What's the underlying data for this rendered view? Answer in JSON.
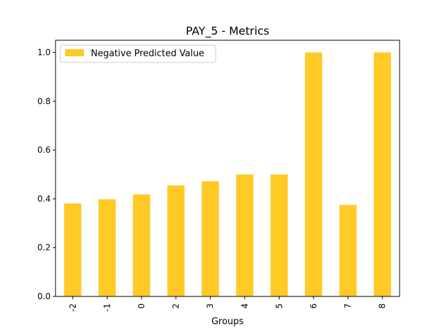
{
  "chart_data": {
    "type": "bar",
    "title": "PAY_5 - Metrics",
    "xlabel": "Groups",
    "ylabel": "",
    "categories": [
      "-2",
      "-1",
      "0",
      "2",
      "3",
      "4",
      "5",
      "6",
      "7",
      "8"
    ],
    "series": [
      {
        "name": "Negative Predicted Value",
        "values": [
          0.381,
          0.398,
          0.418,
          0.455,
          0.472,
          0.5,
          0.5,
          1.0,
          0.375,
          1.0
        ],
        "color": "#ffc926"
      }
    ],
    "ylim": [
      0,
      1.05
    ],
    "yticks": [
      "0.0",
      "0.2",
      "0.4",
      "0.6",
      "0.8",
      "1.0"
    ],
    "grid": false,
    "legend": "top-left"
  }
}
